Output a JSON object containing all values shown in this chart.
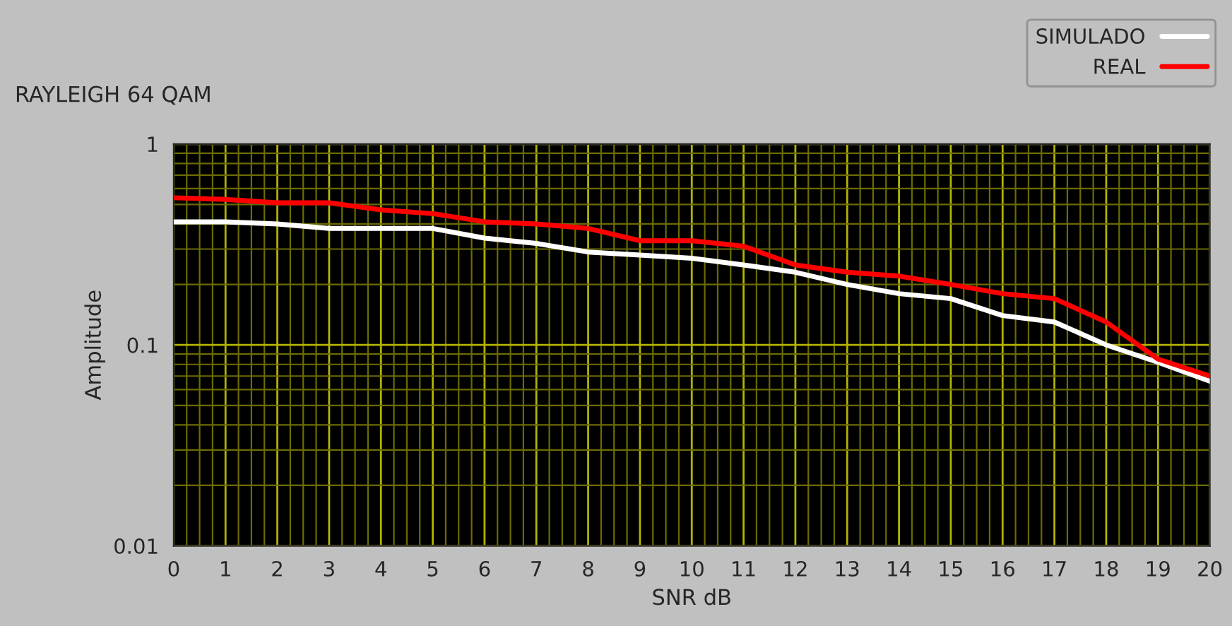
{
  "chart_data": {
    "type": "line",
    "title": "RAYLEIGH 64 QAM",
    "xlabel": "SNR dB",
    "ylabel": "Amplitude",
    "x": [
      0,
      1,
      2,
      3,
      4,
      5,
      6,
      7,
      8,
      9,
      10,
      11,
      12,
      13,
      14,
      15,
      16,
      17,
      18,
      19,
      20
    ],
    "series": [
      {
        "name": "SIMULADO",
        "color": "#ffffff",
        "values": [
          0.41,
          0.41,
          0.4,
          0.38,
          0.38,
          0.38,
          0.34,
          0.32,
          0.29,
          0.28,
          0.27,
          0.25,
          0.23,
          0.2,
          0.18,
          0.17,
          0.14,
          0.13,
          0.1,
          0.082,
          0.066
        ]
      },
      {
        "name": "REAL",
        "color": "#ff0000",
        "values": [
          0.54,
          0.53,
          0.51,
          0.51,
          0.47,
          0.45,
          0.41,
          0.4,
          0.38,
          0.33,
          0.33,
          0.31,
          0.25,
          0.23,
          0.22,
          0.2,
          0.18,
          0.17,
          0.13,
          0.085,
          0.07
        ]
      }
    ],
    "log": "y",
    "xlim": [
      0,
      20
    ],
    "ylim": [
      0.01,
      1
    ],
    "xticks": [
      0,
      {
        "value": 0.25,
        "label": null
      },
      {
        "value": 0.5,
        "label": null
      },
      {
        "value": 0.75,
        "label": null
      },
      1,
      {
        "value": 1.25,
        "label": null
      },
      {
        "value": 1.5,
        "label": null
      },
      {
        "value": 1.75,
        "label": null
      },
      2,
      {
        "value": 2.25,
        "label": null
      },
      {
        "value": 2.5,
        "label": null
      },
      {
        "value": 2.75,
        "label": null
      },
      3,
      {
        "value": 3.25,
        "label": null
      },
      {
        "value": 3.5,
        "label": null
      },
      {
        "value": 3.75,
        "label": null
      },
      4,
      {
        "value": 4.25,
        "label": null
      },
      {
        "value": 4.5,
        "label": null
      },
      {
        "value": 4.75,
        "label": null
      },
      5,
      {
        "value": 5.25,
        "label": null
      },
      {
        "value": 5.5,
        "label": null
      },
      {
        "value": 5.75,
        "label": null
      },
      6,
      {
        "value": 6.25,
        "label": null
      },
      {
        "value": 6.5,
        "label": null
      },
      {
        "value": 6.75,
        "label": null
      },
      7,
      {
        "value": 7.25,
        "label": null
      },
      {
        "value": 7.5,
        "label": null
      },
      {
        "value": 7.75,
        "label": null
      },
      8,
      {
        "value": 8.25,
        "label": null
      },
      {
        "value": 8.5,
        "label": null
      },
      {
        "value": 8.75,
        "label": null
      },
      9,
      {
        "value": 9.25,
        "label": null
      },
      {
        "value": 9.5,
        "label": null
      },
      {
        "value": 9.75,
        "label": null
      },
      10,
      {
        "value": 10.25,
        "label": null
      },
      {
        "value": 10.5,
        "label": null
      },
      {
        "value": 10.75,
        "label": null
      },
      11,
      {
        "value": 11.25,
        "label": null
      },
      {
        "value": 11.5,
        "label": null
      },
      {
        "value": 11.75,
        "label": null
      },
      12,
      {
        "value": 12.25,
        "label": null
      },
      {
        "value": 12.5,
        "label": null
      },
      {
        "value": 12.75,
        "label": null
      },
      13,
      {
        "value": 13.25,
        "label": null
      },
      {
        "value": 13.5,
        "label": null
      },
      {
        "value": 13.75,
        "label": null
      },
      14,
      {
        "value": 14.25,
        "label": null
      },
      {
        "value": 14.5,
        "label": null
      },
      {
        "value": 14.75,
        "label": null
      },
      15,
      {
        "value": 15.25,
        "label": null
      },
      {
        "value": 15.5,
        "label": null
      },
      {
        "value": 15.75,
        "label": null
      },
      16,
      {
        "value": 16.25,
        "label": null
      },
      {
        "value": 16.5,
        "label": null
      },
      {
        "value": 16.75,
        "label": null
      },
      17,
      {
        "value": 17.25,
        "label": null
      },
      {
        "value": 17.5,
        "label": null
      },
      {
        "value": 17.75,
        "label": null
      },
      18,
      {
        "value": 18.25,
        "label": null
      },
      {
        "value": 18.5,
        "label": null
      },
      {
        "value": 18.75,
        "label": null
      },
      19,
      {
        "value": 19.25,
        "label": null
      },
      {
        "value": 19.5,
        "label": null
      },
      {
        "value": 19.75,
        "label": null
      },
      20
    ],
    "yticks": [
      0.01,
      {
        "value": 0.02,
        "label": null
      },
      {
        "value": 0.03,
        "label": null
      },
      {
        "value": 0.04,
        "label": null
      },
      {
        "value": 0.05,
        "label": null
      },
      {
        "value": 0.06,
        "label": null
      },
      {
        "value": 0.07,
        "label": null
      },
      {
        "value": 0.08,
        "label": null
      },
      {
        "value": 0.09,
        "label": null
      },
      0.1,
      {
        "value": 0.2,
        "label": null
      },
      {
        "value": 0.3,
        "label": null
      },
      {
        "value": 0.4,
        "label": null
      },
      {
        "value": 0.5,
        "label": null
      },
      {
        "value": 0.6,
        "label": null
      },
      {
        "value": 0.7,
        "label": null
      },
      {
        "value": 0.8,
        "label": null
      },
      {
        "value": 0.9,
        "label": null
      },
      1
    ],
    "grid": true,
    "legend": "top right",
    "marker": "none",
    "line_style": "solid"
  }
}
